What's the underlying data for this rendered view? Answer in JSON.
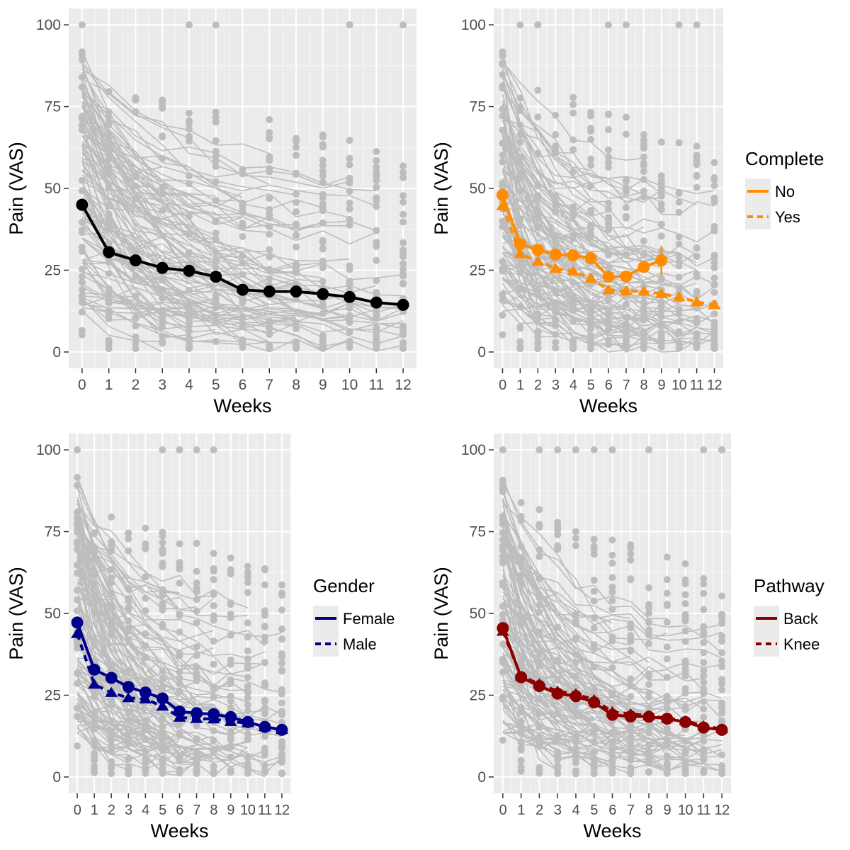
{
  "colors": {
    "overall": "#000000",
    "complete": "#ff8c00",
    "gender": "#00008b",
    "pathway": "#8b0000",
    "individual": "#bdbdbd",
    "panel_bg": "#ebebeb"
  },
  "chart_data": [
    {
      "type": "line",
      "xlabel": "Weeks",
      "ylabel": "Pain (VAS)",
      "x_ticks": [
        "0",
        "1",
        "2",
        "3",
        "4",
        "5",
        "6",
        "7",
        "8",
        "9",
        "10",
        "11",
        "12"
      ],
      "y_ticks": [
        "0",
        "25",
        "50",
        "75",
        "100"
      ],
      "xlim": [
        -0.5,
        12.5
      ],
      "ylim": [
        -5,
        105
      ],
      "grid": true,
      "background_series": "individual patient trajectories (grey)",
      "series": [
        {
          "x": [
            0,
            1,
            2,
            3,
            4,
            5,
            6,
            7,
            8,
            9,
            10,
            11,
            12
          ],
          "values": [
            45,
            30.5,
            28,
            25.7,
            24.8,
            23,
            19,
            18.5,
            18.5,
            17.7,
            16.8,
            15.1,
            14.4
          ],
          "line_style": "solid",
          "marker": "circle"
        }
      ]
    },
    {
      "type": "line",
      "xlabel": "Weeks",
      "ylabel": "Pain (VAS)",
      "x_ticks": [
        "0",
        "1",
        "2",
        "3",
        "4",
        "5",
        "6",
        "7",
        "8",
        "9",
        "10",
        "11",
        "12"
      ],
      "y_ticks": [
        "0",
        "25",
        "50",
        "75",
        "100"
      ],
      "xlim": [
        -0.5,
        12.5
      ],
      "ylim": [
        -5,
        105
      ],
      "grid": true,
      "legend": {
        "title": "Complete",
        "position": "right"
      },
      "series": [
        {
          "name": "No",
          "x": [
            0,
            1,
            2,
            3,
            4,
            5,
            6,
            7,
            8,
            9
          ],
          "values": [
            48,
            33,
            31.2,
            29.8,
            29.5,
            28.7,
            23,
            23.1,
            26,
            28
          ],
          "line_style": "solid",
          "marker": "circle",
          "error_bar_at": 9,
          "error_range": [
            23.5,
            32.5
          ]
        },
        {
          "name": "Yes",
          "x": [
            0,
            1,
            2,
            3,
            4,
            5,
            6,
            7,
            8,
            9,
            10,
            11,
            12
          ],
          "values": [
            44.7,
            30,
            27.7,
            25.5,
            24.7,
            22.5,
            19,
            18.6,
            18.5,
            17.8,
            16.8,
            15.3,
            14.4
          ],
          "line_style": "dashed",
          "marker": "triangle"
        }
      ]
    },
    {
      "type": "line",
      "xlabel": "Weeks",
      "ylabel": "Pain (VAS)",
      "x_ticks": [
        "0",
        "1",
        "2",
        "3",
        "4",
        "5",
        "6",
        "7",
        "8",
        "9",
        "10",
        "11",
        "12"
      ],
      "y_ticks": [
        "0",
        "25",
        "50",
        "75",
        "100"
      ],
      "xlim": [
        -0.5,
        12.5
      ],
      "ylim": [
        -5,
        105
      ],
      "grid": true,
      "legend": {
        "title": "Gender",
        "position": "right"
      },
      "series": [
        {
          "name": "Female",
          "x": [
            0,
            1,
            2,
            3,
            4,
            5,
            6,
            7,
            8,
            9,
            10,
            11,
            12
          ],
          "values": [
            47.2,
            32.8,
            30.3,
            27.5,
            25.8,
            24,
            20,
            19.5,
            19.2,
            18.3,
            16.8,
            15.3,
            14.4
          ],
          "line_style": "solid",
          "marker": "circle"
        },
        {
          "name": "Male",
          "x": [
            0,
            1,
            2,
            3,
            4,
            5,
            6,
            7,
            8,
            9,
            10,
            11,
            12
          ],
          "values": [
            43.8,
            28.3,
            25.8,
            24.2,
            23.8,
            21.6,
            18.2,
            17.8,
            17.7,
            16.9,
            16.5,
            15.3,
            14.5
          ],
          "line_style": "dashed",
          "marker": "triangle"
        }
      ]
    },
    {
      "type": "line",
      "xlabel": "Weeks",
      "ylabel": "Pain (VAS)",
      "x_ticks": [
        "0",
        "1",
        "2",
        "3",
        "4",
        "5",
        "6",
        "7",
        "8",
        "9",
        "10",
        "11",
        "12"
      ],
      "y_ticks": [
        "0",
        "25",
        "50",
        "75",
        "100"
      ],
      "xlim": [
        -0.5,
        12.5
      ],
      "ylim": [
        -5,
        105
      ],
      "grid": true,
      "legend": {
        "title": "Pathway",
        "position": "right"
      },
      "series": [
        {
          "name": "Back",
          "x": [
            0,
            1,
            2,
            3,
            4,
            5,
            6,
            7,
            8,
            9,
            10,
            11,
            12
          ],
          "values": [
            45.5,
            30.5,
            27.8,
            25.5,
            24.7,
            22.8,
            19,
            18.5,
            18.4,
            17.8,
            16.8,
            15.1,
            14.4
          ],
          "line_style": "solid",
          "marker": "circle"
        },
        {
          "name": "Knee",
          "x": [
            0,
            1,
            2,
            3,
            4,
            5,
            6,
            7,
            8,
            9,
            10,
            11,
            12
          ],
          "values": [
            44.5,
            30.8,
            28.5,
            26.2,
            25.4,
            23.6,
            19.9,
            19.3,
            18.7,
            18,
            17.2,
            15.6,
            14.7
          ],
          "line_style": "dashed",
          "marker": "triangle"
        }
      ]
    }
  ]
}
